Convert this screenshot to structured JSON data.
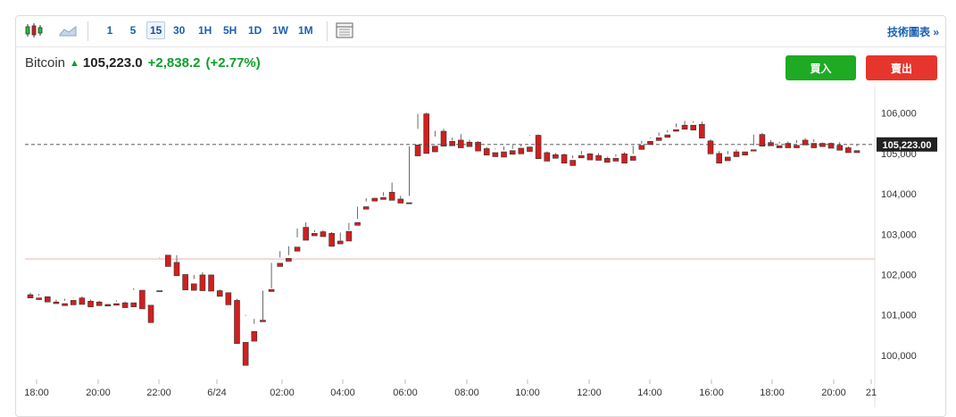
{
  "toolbar": {
    "candle_chart_icon": "candlestick-chart-icon",
    "area_chart_icon": "area-chart-icon",
    "table_icon": "table-icon",
    "timeframes": [
      {
        "label": "1",
        "active": false
      },
      {
        "label": "5",
        "active": false
      },
      {
        "label": "15",
        "active": true
      },
      {
        "label": "30",
        "active": false
      },
      {
        "label": "1H",
        "active": false
      },
      {
        "label": "5H",
        "active": false
      },
      {
        "label": "1D",
        "active": false
      },
      {
        "label": "1W",
        "active": false
      },
      {
        "label": "1M",
        "active": false
      }
    ],
    "technical_link": "技術圖表 »"
  },
  "quote": {
    "name": "Bitcoin",
    "price": "105,223.0",
    "change": "+2,838.2",
    "change_pct": "(+2.77%)"
  },
  "actions": {
    "buy_label": "買入",
    "sell_label": "賣出"
  },
  "colors": {
    "up": "#1ec22f",
    "down": "#d11f1f",
    "accent": "#1a5fb4",
    "price_tag": "#222222"
  },
  "chart_data": {
    "type": "candlestick",
    "title": "",
    "ylim": [
      99400,
      106700
    ],
    "yticks": [
      100000,
      101000,
      102000,
      103000,
      104000,
      105000,
      106000
    ],
    "ytick_labels": [
      "100,000",
      "101,000",
      "102,000",
      "103,000",
      "104,000",
      "105,000",
      "106,000"
    ],
    "last_price": 105223,
    "last_price_label": "105,223.00",
    "reference_line": 102385,
    "xtick_labels": [
      "18:00",
      "20:00",
      "22:00",
      "6/24",
      "02:00",
      "04:00",
      "06:00",
      "08:00",
      "10:00",
      "12:00",
      "14:00",
      "16:00",
      "18:00",
      "20:00",
      "21"
    ],
    "candles": [
      [
        101500,
        101550,
        101450,
        101420
      ],
      [
        101420,
        101480,
        101520,
        101380
      ],
      [
        101450,
        101420,
        101380,
        101320
      ],
      [
        101320,
        101380,
        101300,
        101280
      ],
      [
        101280,
        101350,
        101400,
        101230
      ],
      [
        101360,
        101420,
        101430,
        101250
      ],
      [
        101420,
        101460,
        101340,
        101260
      ],
      [
        101340,
        101380,
        101300,
        101200
      ],
      [
        101320,
        101350,
        101280,
        101230
      ],
      [
        101260,
        101300,
        101300,
        101220
      ],
      [
        101280,
        101360,
        101330,
        101240
      ],
      [
        101300,
        101330,
        101230,
        101180
      ],
      [
        101300,
        101660,
        101620,
        101200
      ],
      [
        101610,
        101620,
        101220,
        101150
      ],
      [
        101240,
        101580,
        101580,
        100810
      ],
      [
        101600,
        102410,
        102420,
        101600
      ],
      [
        102480,
        102390,
        102260,
        102200
      ],
      [
        102300,
        102480,
        102000,
        101970
      ],
      [
        102000,
        101870,
        101700,
        101620
      ],
      [
        101770,
        101890,
        101990,
        101610
      ],
      [
        101990,
        102060,
        101650,
        101600
      ],
      [
        101990,
        102000,
        101610,
        101590
      ],
      [
        101600,
        101630,
        101550,
        101460
      ],
      [
        101550,
        101550,
        101320,
        101250
      ],
      [
        101360,
        101400,
        100360,
        100290
      ],
      [
        100320,
        100980,
        101000,
        99750
      ],
      [
        100590,
        100780,
        100900,
        100350
      ],
      [
        100870,
        100880,
        101600,
        100830
      ],
      [
        101630,
        101660,
        102290,
        101580
      ],
      [
        102280,
        102580,
        102420,
        102200
      ],
      [
        102400,
        102480,
        102700,
        102330
      ],
      [
        102680,
        102920,
        103140,
        102580
      ],
      [
        103170,
        103290,
        103020,
        102850
      ],
      [
        103020,
        103100,
        103050,
        102960
      ],
      [
        103060,
        103100,
        102980,
        102940
      ],
      [
        103020,
        103050,
        102820,
        102700
      ],
      [
        102830,
        102840,
        103040,
        102760
      ],
      [
        103070,
        103100,
        103280,
        102830
      ],
      [
        103290,
        103380,
        103680,
        103220
      ],
      [
        103680,
        103810,
        103890,
        103620
      ],
      [
        103890,
        103920,
        103910,
        103820
      ],
      [
        103910,
        103950,
        104040,
        103860
      ],
      [
        104040,
        104280,
        103860,
        103840
      ],
      [
        103870,
        103950,
        103810,
        103770
      ],
      [
        103780,
        103950,
        105180,
        103770
      ],
      [
        105210,
        105610,
        105980,
        104940
      ],
      [
        105980,
        106010,
        105070,
        105000
      ],
      [
        105180,
        105420,
        105560,
        105040
      ],
      [
        105550,
        105610,
        105280,
        105180
      ],
      [
        105300,
        105390,
        105320,
        105190
      ],
      [
        105330,
        105480,
        105270,
        105140
      ],
      [
        105280,
        105340,
        105240,
        105170
      ],
      [
        105280,
        105300,
        105130,
        105060
      ],
      [
        105120,
        105160,
        105020,
        104960
      ],
      [
        105020,
        105100,
        105120,
        104920
      ],
      [
        105040,
        105170,
        105080,
        104910
      ],
      [
        105070,
        105210,
        105110,
        104980
      ],
      [
        105130,
        105170,
        105220,
        104990
      ],
      [
        105160,
        105450,
        105440,
        105050
      ],
      [
        105450,
        105470,
        105000,
        104870
      ],
      [
        105020,
        105050,
        104940,
        104810
      ],
      [
        104970,
        105010,
        104960,
        104880
      ],
      [
        104970,
        105000,
        104820,
        104760
      ],
      [
        104830,
        104880,
        104950,
        104700
      ],
      [
        104950,
        105060,
        104980,
        104890
      ],
      [
        104990,
        105010,
        104920,
        104840
      ],
      [
        104950,
        105010,
        104880,
        104830
      ],
      [
        104880,
        104920,
        104840,
        104780
      ],
      [
        104880,
        104920,
        104980,
        104810
      ],
      [
        104990,
        105030,
        104940,
        104760
      ],
      [
        104930,
        104990,
        105190,
        104830
      ],
      [
        105200,
        105240,
        105310,
        105100
      ],
      [
        105300,
        105380,
        105400,
        105220
      ],
      [
        105390,
        105440,
        105520,
        105320
      ],
      [
        105460,
        105520,
        105580,
        105400
      ],
      [
        105590,
        105650,
        105740,
        105550
      ],
      [
        105700,
        105810,
        105700,
        105600
      ],
      [
        105700,
        105800,
        105760,
        105580
      ],
      [
        105720,
        105790,
        105420,
        105380
      ],
      [
        105310,
        105350,
        105030,
        104990
      ],
      [
        105000,
        105060,
        104890,
        104760
      ],
      [
        104910,
        104980,
        105060,
        104820
      ],
      [
        105040,
        105100,
        105010,
        104920
      ],
      [
        105040,
        105120,
        105130,
        104960
      ],
      [
        105090,
        105200,
        105470,
        105060
      ],
      [
        105470,
        105510,
        105260,
        105180
      ],
      [
        105270,
        105330,
        105210,
        105190
      ],
      [
        105190,
        105250,
        105290,
        105140
      ],
      [
        105250,
        105300,
        105180,
        105140
      ],
      [
        105200,
        105260,
        105330,
        105140
      ],
      [
        105330,
        105380,
        105240,
        105210
      ],
      [
        105250,
        105350,
        105280,
        105140
      ],
      [
        105250,
        105270,
        105230,
        105170
      ],
      [
        105250,
        105270,
        105200,
        105130
      ],
      [
        105200,
        105280,
        105120,
        105080
      ],
      [
        105140,
        105170,
        105080,
        105020
      ],
      [
        105070,
        105180,
        105223,
        105020
      ]
    ]
  }
}
